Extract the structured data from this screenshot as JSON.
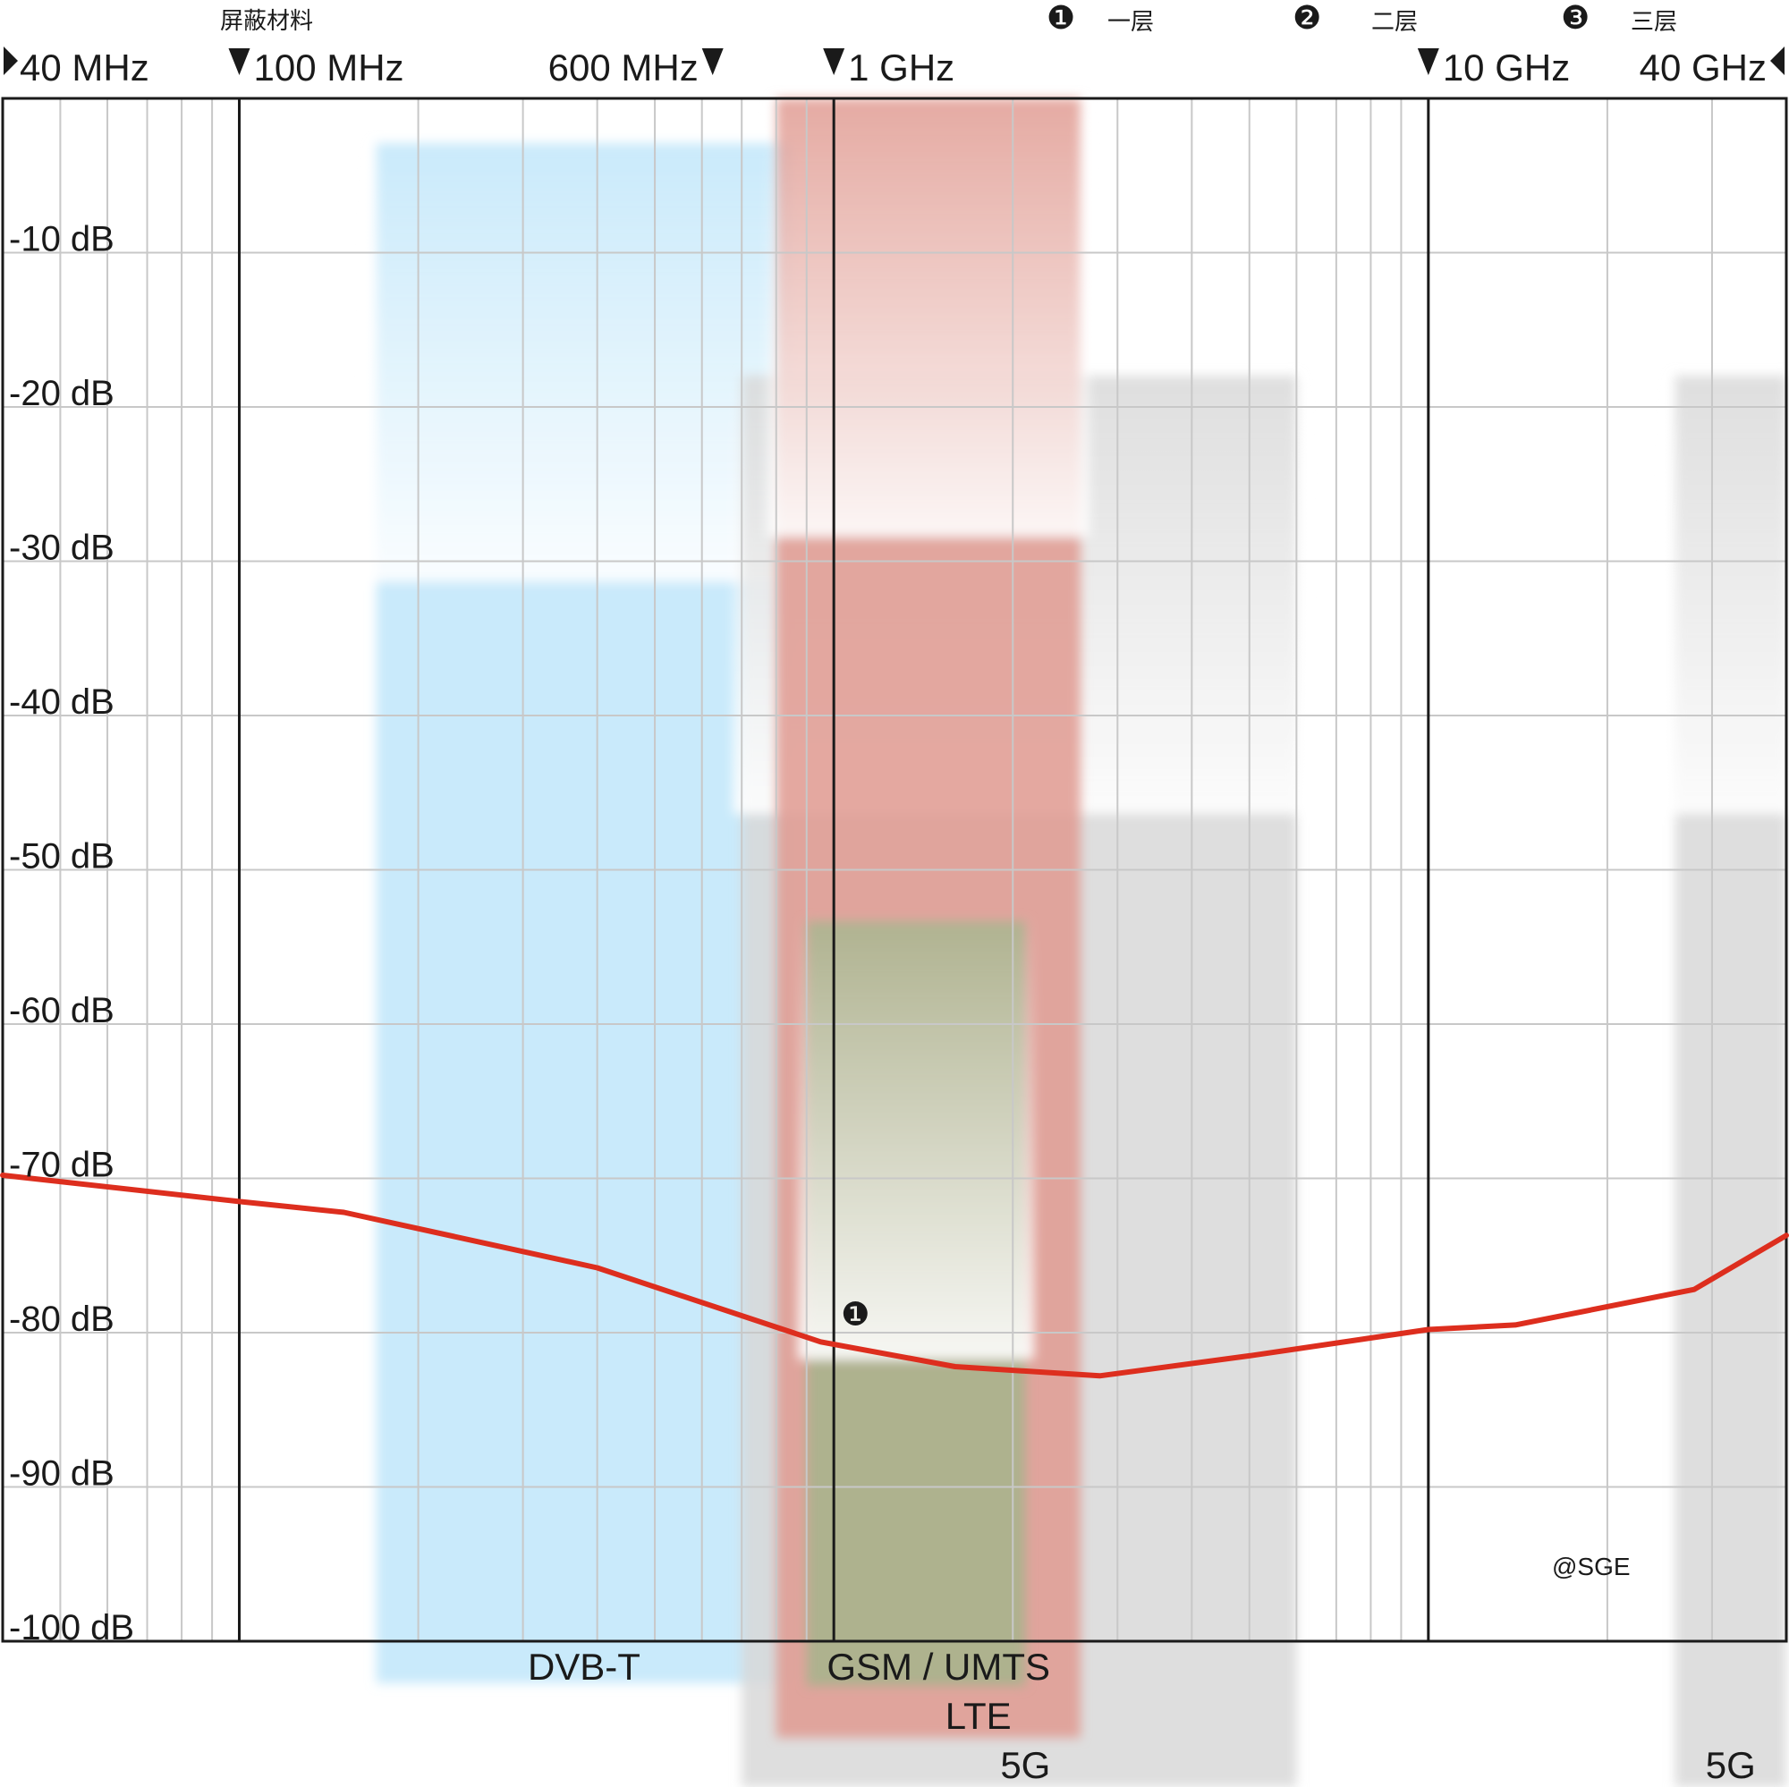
{
  "title": "屏蔽材料",
  "layers": [
    {
      "marker": "❶",
      "label": "一层"
    },
    {
      "marker": "❷",
      "label": "二层"
    },
    {
      "marker": "❸",
      "label": "三层"
    }
  ],
  "watermark": "@SGE",
  "colors": {
    "curve": "#dd2e1e",
    "grid_major": "#1a1a1a",
    "grid_minor": "#c8c8c8",
    "band_dvbt": "#bfe6fa",
    "band_gsm": "#a6b48c",
    "band_lte": "#e09a90",
    "band_5g": "#d8d8d8"
  },
  "chart_data": {
    "type": "line",
    "x_scale": "log",
    "x_unit": "Hz",
    "xlim": [
      40000000,
      40000000000
    ],
    "ylim": [
      -100,
      0
    ],
    "grid": true,
    "frequency_labels": [
      {
        "text": "40 MHz",
        "value": 40000000,
        "arrow": "right"
      },
      {
        "text": "100 MHz",
        "value": 100000000,
        "arrow": "down"
      },
      {
        "text": "600 MHz",
        "value": 600000000,
        "arrow": "down"
      },
      {
        "text": "1 GHz",
        "value": 1000000000,
        "arrow": "down"
      },
      {
        "text": "10 GHz",
        "value": 10000000000,
        "arrow": "down"
      },
      {
        "text": "40 GHz",
        "value": 40000000000,
        "arrow": "left"
      }
    ],
    "y_ticks": [
      {
        "value": -10,
        "label": "-10 dB"
      },
      {
        "value": -20,
        "label": "-20 dB"
      },
      {
        "value": -30,
        "label": "-30 dB"
      },
      {
        "value": -40,
        "label": "-40 dB"
      },
      {
        "value": -50,
        "label": "-50 dB"
      },
      {
        "value": -60,
        "label": "-60 dB"
      },
      {
        "value": -70,
        "label": "-70 dB"
      },
      {
        "value": -80,
        "label": "-80 dB"
      },
      {
        "value": -90,
        "label": "-90 dB"
      },
      {
        "value": -100,
        "label": "-100 dB"
      }
    ],
    "bands": [
      {
        "label": "DVB-T",
        "from": 170000000,
        "to": 850000000,
        "color": "#bfe6fa"
      },
      {
        "label": "5G",
        "from": 700000000,
        "to": 6000000000,
        "color": "#d8d8d8"
      },
      {
        "label": "LTE",
        "from": 800000000,
        "to": 2600000000,
        "color": "#e09a90"
      },
      {
        "label": "GSM / UMTS",
        "from": 900000000,
        "to": 2100000000,
        "color": "#a6b48c"
      },
      {
        "label": "5G",
        "from": 26000000000,
        "to": 40000000000,
        "color": "#d8d8d8"
      }
    ],
    "series": [
      {
        "marker": "❶",
        "marker_at": {
          "x": 1050000000,
          "y": -78.8
        },
        "x": [
          40000000,
          100000000,
          150000000,
          400000000,
          950000000,
          1600000000,
          2800000000,
          5000000000,
          10000000000,
          14000000000,
          28000000000,
          40000000000
        ],
        "y": [
          -69.8,
          -71.5,
          -72.2,
          -75.8,
          -80.6,
          -82.2,
          -82.8,
          -81.5,
          -79.8,
          -79.5,
          -77.2,
          -73.7
        ]
      }
    ]
  }
}
